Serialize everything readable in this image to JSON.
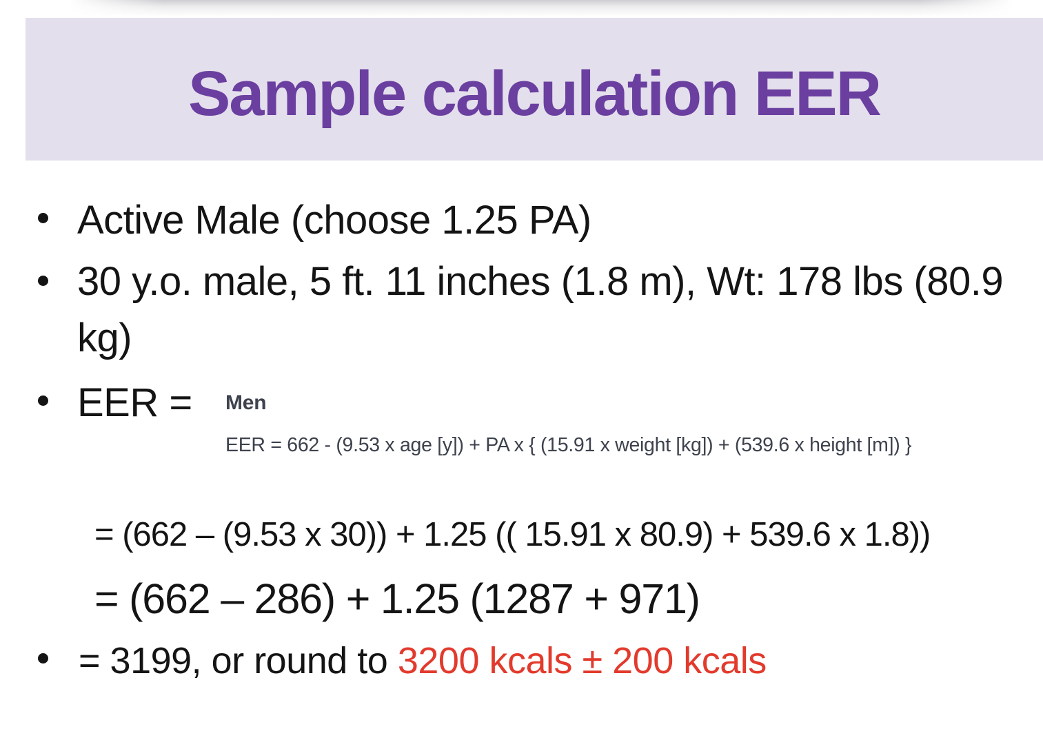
{
  "slide": {
    "title": "Sample calculation EER",
    "bullets": {
      "b1": "Active Male (choose 1.25 PA)",
      "b2_line1": "30 y.o. male, 5 ft. 11 inches (1.8 m), Wt: 178 lbs (80.9",
      "b2_line2": "kg)",
      "b3_label": "EER ="
    },
    "formula_box": {
      "heading": "Men",
      "formula": "EER = 662 - (9.53 x age [y]) + PA x { (15.91 x weight [kg]) + (539.6 x height [m]) }"
    },
    "calc": {
      "line1": "= (662 – (9.53 x 30)) + 1.25 (( 15.91 x 80.9) + 539.6 x 1.8))",
      "line2": "= (662 – 286) + 1.25 (1287 + 971)"
    },
    "result": {
      "prefix": "= 3199, or round to ",
      "highlight": "3200 kcals ± 200 kcals"
    },
    "colors": {
      "title_purple": "#6a3fa0",
      "banner_bg": "#e4dfec",
      "body_text": "#141414",
      "formula_text": "#3d424d",
      "highlight_red": "#e23a2c"
    }
  }
}
